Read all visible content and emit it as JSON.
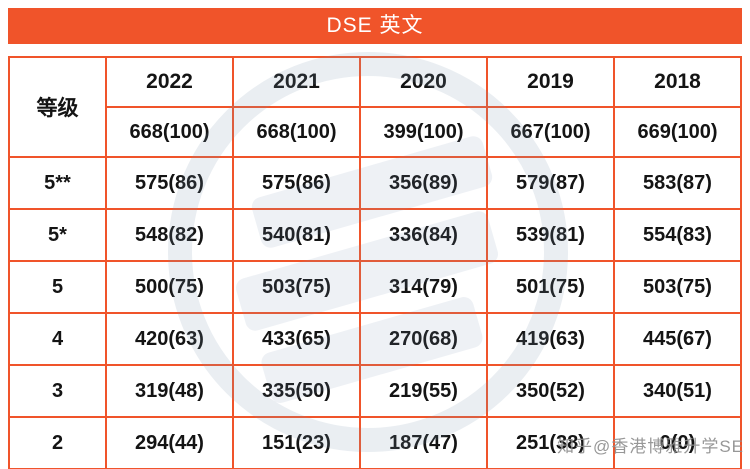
{
  "title": "DSE 英文",
  "colors": {
    "accent": "#f0542a",
    "watermark_gray": "#8e8e8e",
    "stamp_blue": "#7a94b0"
  },
  "watermark": "知乎@香港博雅升学SE",
  "chart_data": {
    "type": "table",
    "title": "DSE 英文",
    "grade_header": "等级",
    "years": [
      "2022",
      "2021",
      "2020",
      "2019",
      "2018"
    ],
    "totals": [
      "668(100)",
      "668(100)",
      "399(100)",
      "667(100)",
      "669(100)"
    ],
    "rows": [
      {
        "grade": "5**",
        "values": [
          "575(86)",
          "575(86)",
          "356(89)",
          "579(87)",
          "583(87)"
        ]
      },
      {
        "grade": "5*",
        "values": [
          "548(82)",
          "540(81)",
          "336(84)",
          "539(81)",
          "554(83)"
        ]
      },
      {
        "grade": "5",
        "values": [
          "500(75)",
          "503(75)",
          "314(79)",
          "501(75)",
          "503(75)"
        ]
      },
      {
        "grade": "4",
        "values": [
          "420(63)",
          "433(65)",
          "270(68)",
          "419(63)",
          "445(67)"
        ]
      },
      {
        "grade": "3",
        "values": [
          "319(48)",
          "335(50)",
          "219(55)",
          "350(52)",
          "340(51)"
        ]
      },
      {
        "grade": "2",
        "values": [
          "294(44)",
          "151(23)",
          "187(47)",
          "251(38)",
          "0(0)"
        ]
      }
    ]
  }
}
